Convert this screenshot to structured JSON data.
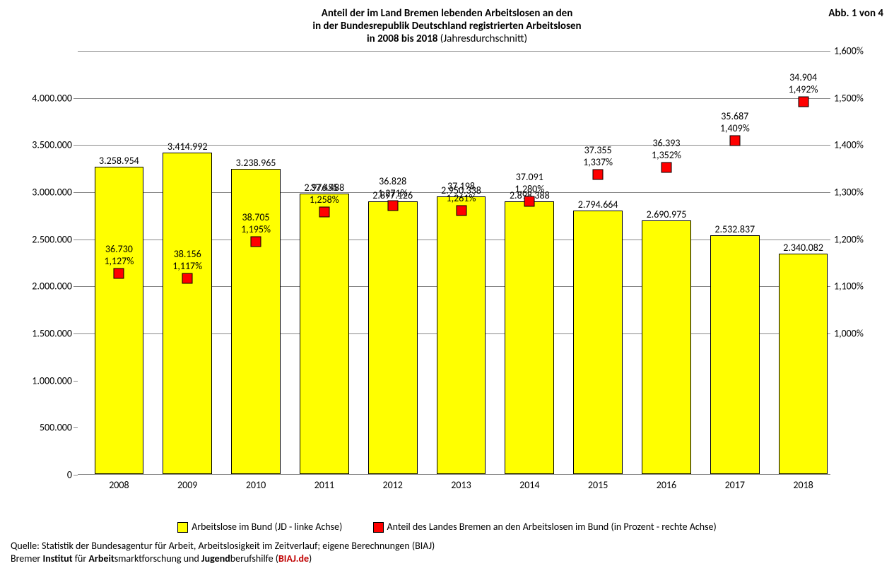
{
  "title_line1": "Anteil der im Land Bremen lebenden Arbeitslosen an den",
  "title_line2": "in der Bundesrepublik Deutschland registrierten Arbeitslosen",
  "title_line3_bold": "in 2008 bis 2018",
  "title_line3_rest": " (Jahresdurchschnitt)",
  "fig_label": "Abb. 1 von 4",
  "chart": {
    "type": "bar+scatter",
    "categories": [
      "2008",
      "2009",
      "2010",
      "2011",
      "2012",
      "2013",
      "2014",
      "2015",
      "2016",
      "2017",
      "2018"
    ],
    "bar_values": [
      3258954,
      3414992,
      3238965,
      2976488,
      2897126,
      2950338,
      2898388,
      2794664,
      2690975,
      2532837,
      2340082
    ],
    "bar_labels": [
      "3.258.954",
      "3.414.992",
      "3.238.965",
      "2.976.488",
      "2.897.126",
      "2.950.338",
      "2.898.388",
      "2.794.664",
      "2.690.975",
      "2.532.837",
      "2.340.082"
    ],
    "bremen_values": [
      "36.730",
      "38.156",
      "38.705",
      "37.455",
      "36.828",
      "37.198",
      "37.091",
      "37.355",
      "36.393",
      "35.687",
      "34.904"
    ],
    "pct_values": [
      1.127,
      1.117,
      1.195,
      1.258,
      1.271,
      1.261,
      1.28,
      1.337,
      1.352,
      1.409,
      1.492
    ],
    "pct_labels": [
      "1,127%",
      "1,117%",
      "1,195%",
      "1,258%",
      "1,271%",
      "1,261%",
      "1,280%",
      "1,337%",
      "1,352%",
      "1,409%",
      "1,492%"
    ],
    "y_left_min": 0,
    "y_left_max": 4500000,
    "y_left_ticks": [
      0,
      500000,
      1000000,
      1500000,
      2000000,
      2500000,
      3000000,
      3500000,
      4000000
    ],
    "y_left_tick_labels": [
      "0",
      "500.000",
      "1.000.000",
      "1.500.000",
      "2.000.000",
      "2.500.000",
      "3.000.000",
      "3.500.000",
      "4.000.000"
    ],
    "y_right_min": 0.7,
    "y_right_max": 1.6,
    "y_right_ticks": [
      1.0,
      1.1,
      1.2,
      1.3,
      1.4,
      1.5,
      1.6
    ],
    "y_right_tick_labels": [
      "1,000%",
      "1,100%",
      "1,200%",
      "1,300%",
      "1,400%",
      "1,500%",
      "1,600%"
    ],
    "bar_color": "#ffff00",
    "bar_border": "#000000",
    "marker_color": "#ff0000",
    "marker_border": "#000000",
    "grid_color": "#888888",
    "background_color": "#ffffff",
    "font_size": 14,
    "title_fontsize": 15,
    "watermark": "BIAJ.de"
  },
  "legend": {
    "bar": "Arbeitslose im Bund (JD - linke Achse)",
    "marker": "Anteil des Landes Bremen an den Arbeitslosen im Bund (in Prozent - rechte Achse)"
  },
  "footer": {
    "line1": "Quelle: Statistik der Bundesagentur für Arbeit, Arbeitslosigkeit im Zeitverlauf; eigene Berechnungen (BIAJ)",
    "line2_pre": "Bremer ",
    "line2_b1": "Institut",
    "line2_mid1": " für ",
    "line2_b2": "Arbeit",
    "line2_mid2": "smarktforschung und ",
    "line2_b3": "Jugend",
    "line2_mid3": "berufshilfe (",
    "line2_red": "BIAJ.de",
    "line2_end": ")"
  }
}
